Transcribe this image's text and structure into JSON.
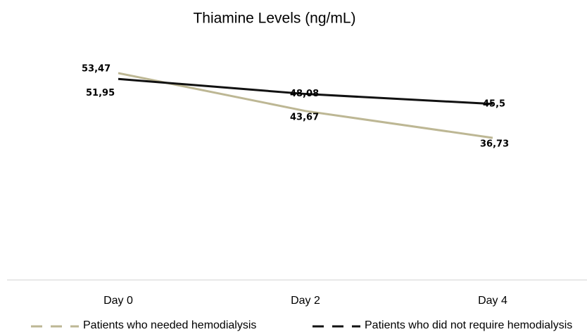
{
  "chart_data": {
    "type": "line",
    "title": "Thiamine Levels (ng/mL)",
    "categories": [
      "Day 0",
      "Day 2",
      "Day 4"
    ],
    "series": [
      {
        "name": "Patients who needed hemodialysis",
        "color": "#bdb794",
        "values": [
          53.47,
          43.67,
          36.73
        ],
        "value_labels": [
          "53,47",
          "43,67",
          "36,73"
        ]
      },
      {
        "name": "Patients who did not require hemodialysis",
        "color": "#111111",
        "values": [
          51.95,
          48.08,
          45.5
        ],
        "value_labels": [
          "51,95",
          "48,08",
          "45,5"
        ]
      }
    ],
    "ylim": [
      0,
      60
    ],
    "grid": false
  }
}
